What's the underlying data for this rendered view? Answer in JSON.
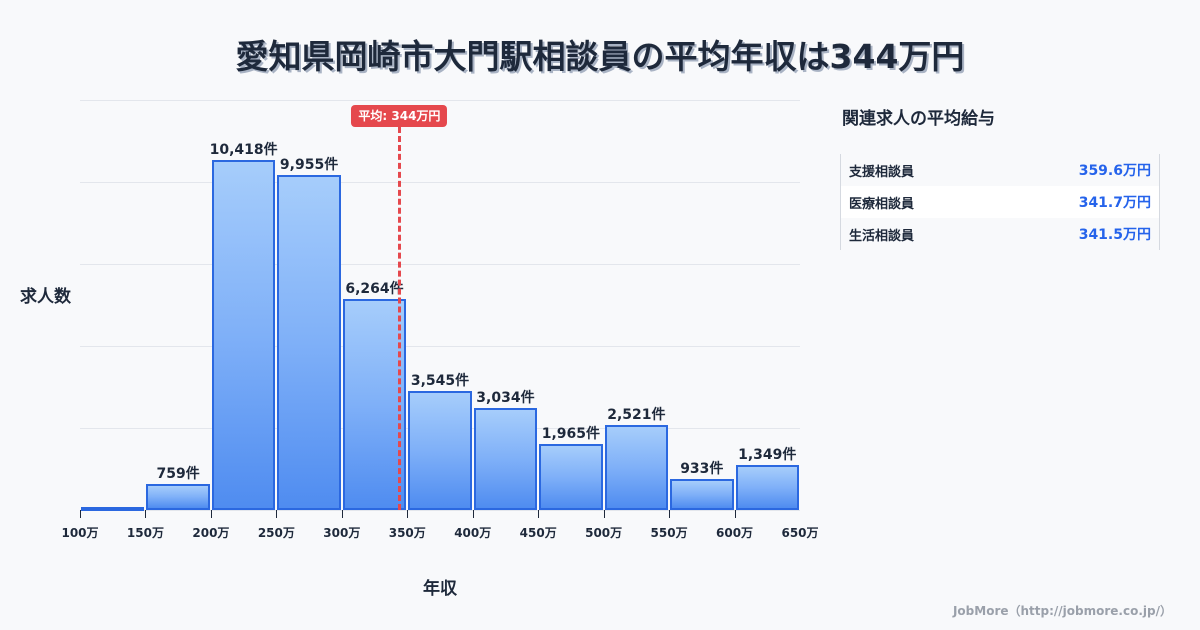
{
  "header": {
    "title": "愛知県岡崎市大門駅相談員の平均年収は344万円"
  },
  "chart_data": {
    "type": "bar",
    "title": "愛知県岡崎市大門駅相談員の平均年収は344万円",
    "xlabel": "年収",
    "ylabel": "求人数",
    "bins": [
      100,
      150,
      200,
      250,
      300,
      350,
      400,
      450,
      500,
      550,
      600,
      650
    ],
    "tick_labels": [
      "100万",
      "150万",
      "200万",
      "250万",
      "300万",
      "350万",
      "400万",
      "450万",
      "500万",
      "550万",
      "600万",
      "650万"
    ],
    "categories": [
      "100-150万",
      "150-200万",
      "200-250万",
      "250-300万",
      "300-350万",
      "350-400万",
      "400-450万",
      "450-500万",
      "500-550万",
      "550-600万",
      "600-650万"
    ],
    "values": [
      0,
      759,
      10418,
      9955,
      6264,
      3545,
      3034,
      1965,
      2521,
      933,
      1349
    ],
    "value_labels": [
      "",
      "759件",
      "10,418件",
      "9,955件",
      "6,264件",
      "3,545件",
      "3,034件",
      "1,965件",
      "2,521件",
      "933件",
      "1,349件"
    ],
    "xlim": [
      100,
      650
    ],
    "ylim": [
      0,
      12200
    ],
    "grid": true,
    "colors": {
      "bar_border": "#2b68e0",
      "bar_top": "#a6cdfb",
      "bar_bottom": "#4f8cf0",
      "mean_line": "#e5484d"
    },
    "annotations": [
      {
        "type": "vline",
        "x": 344,
        "label": "平均: 344万円"
      }
    ]
  },
  "sidebar": {
    "title": "関連求人の平均給与",
    "items": [
      {
        "name": "支援相談員",
        "value": "359.6万円"
      },
      {
        "name": "医療相談員",
        "value": "341.7万円"
      },
      {
        "name": "生活相談員",
        "value": "341.5万円"
      }
    ]
  },
  "footer": {
    "credit": "JobMore（http://jobmore.co.jp/）"
  }
}
